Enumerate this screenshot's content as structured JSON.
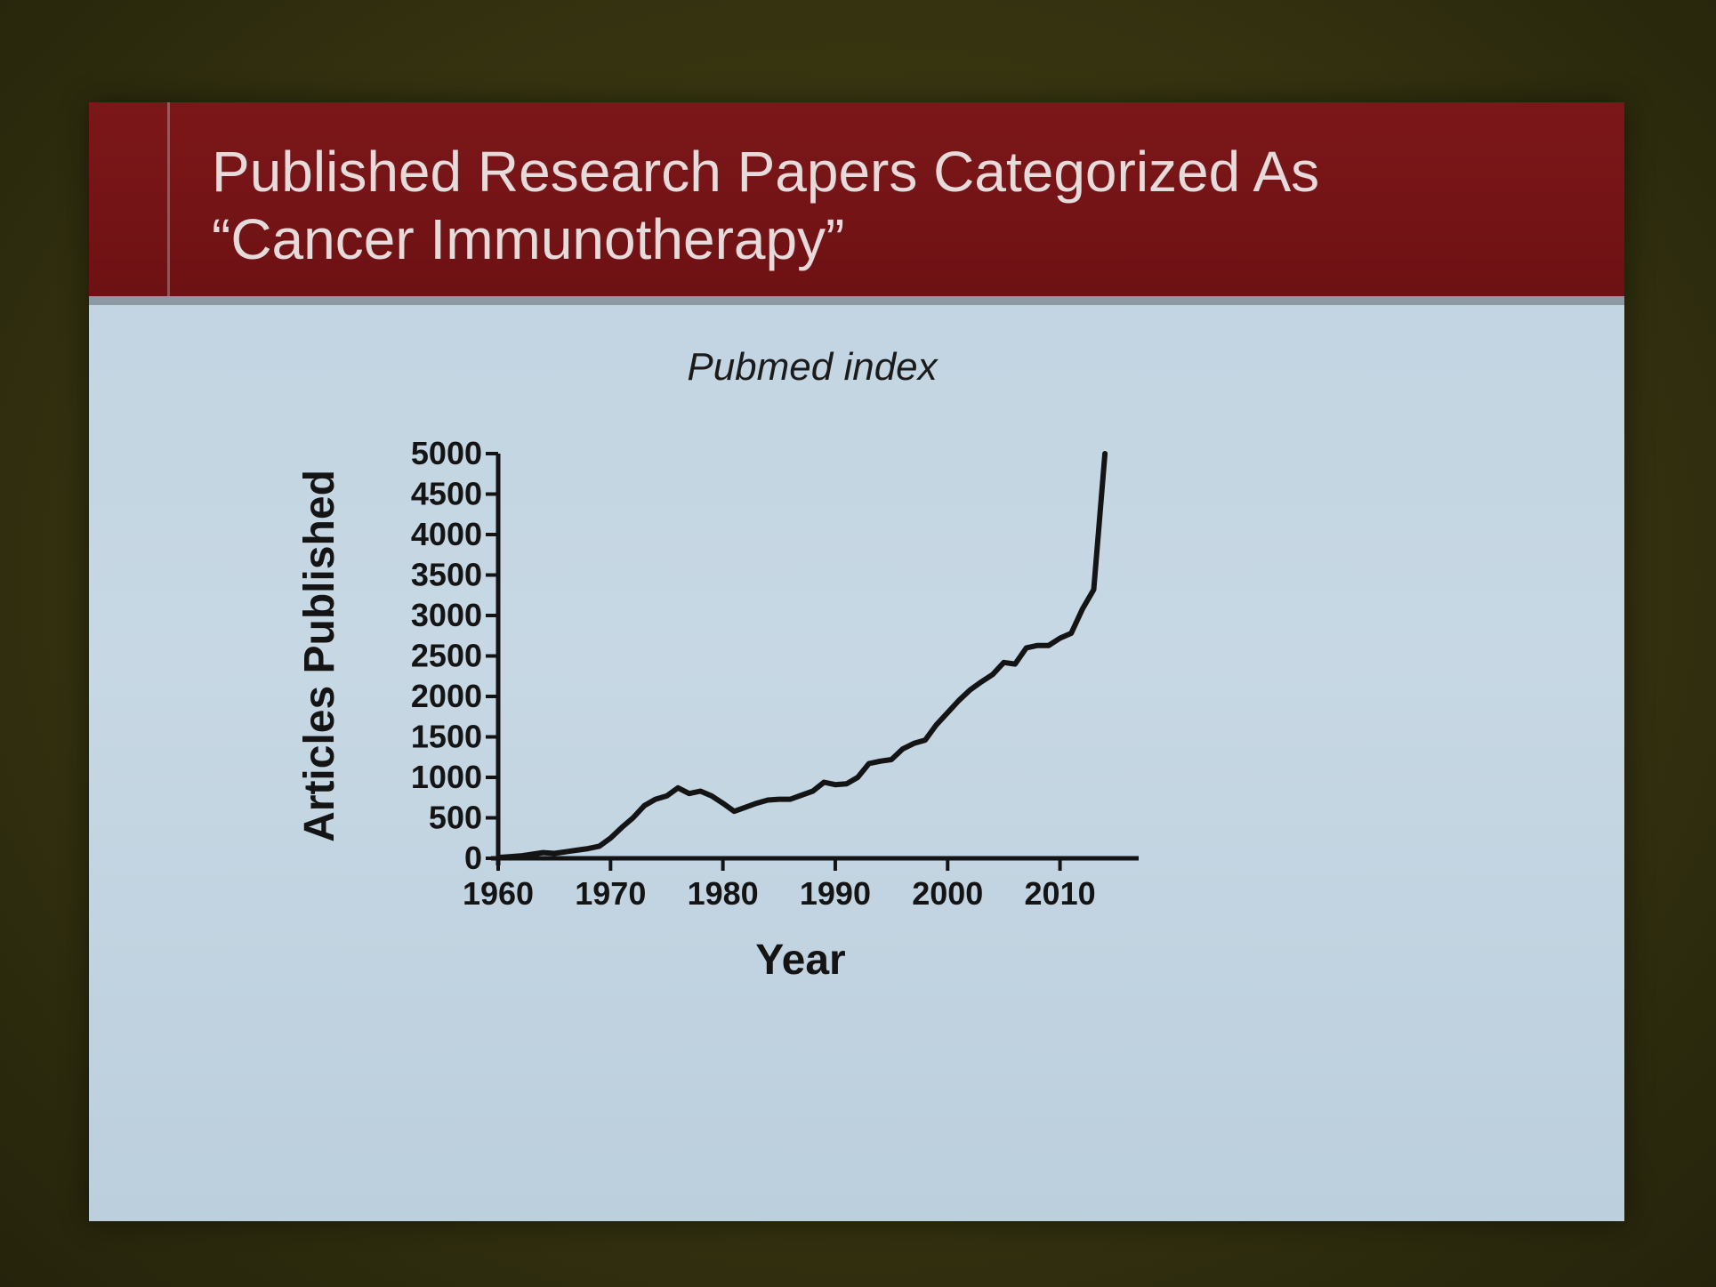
{
  "slide": {
    "title_line1": "Published Research Papers Categorized As",
    "title_line2": "“Cancer Immunotherapy”"
  },
  "colors": {
    "title_bar": "#7c1719",
    "title_text": "#e7dada",
    "slide_background": "#c4d6e2",
    "line": "#141414"
  },
  "chart_data": {
    "type": "line",
    "title": "Pubmed index",
    "xlabel": "Year",
    "ylabel": "Articles Published",
    "xlim": [
      1960,
      2017
    ],
    "ylim": [
      0,
      5000
    ],
    "x_ticks": [
      1960,
      1970,
      1980,
      1990,
      2000,
      2010
    ],
    "y_ticks": [
      0,
      500,
      1000,
      1500,
      2000,
      2500,
      3000,
      3500,
      4000,
      4500,
      5000
    ],
    "grid": false,
    "series": [
      {
        "x": [
          1960,
          1961,
          1962,
          1963,
          1964,
          1965,
          1966,
          1967,
          1968,
          1969,
          1970,
          1971,
          1972,
          1973,
          1974,
          1975,
          1976,
          1977,
          1978,
          1979,
          1980,
          1981,
          1982,
          1983,
          1984,
          1985,
          1986,
          1987,
          1988,
          1989,
          1990,
          1991,
          1992,
          1993,
          1994,
          1995,
          1996,
          1997,
          1998,
          1999,
          2000,
          2001,
          2002,
          2003,
          2004,
          2005,
          2006,
          2007,
          2008,
          2009,
          2010,
          2011,
          2012,
          2013,
          2014
        ],
        "y": [
          10,
          20,
          30,
          50,
          70,
          60,
          80,
          100,
          120,
          150,
          250,
          380,
          500,
          650,
          730,
          770,
          870,
          800,
          830,
          770,
          680,
          580,
          630,
          680,
          720,
          730,
          730,
          780,
          830,
          940,
          910,
          920,
          1000,
          1170,
          1200,
          1220,
          1350,
          1420,
          1460,
          1650,
          1800,
          1950,
          2080,
          2180,
          2270,
          2420,
          2400,
          2600,
          2630,
          2630,
          2720,
          2780,
          3080,
          3320,
          5000
        ]
      }
    ]
  }
}
